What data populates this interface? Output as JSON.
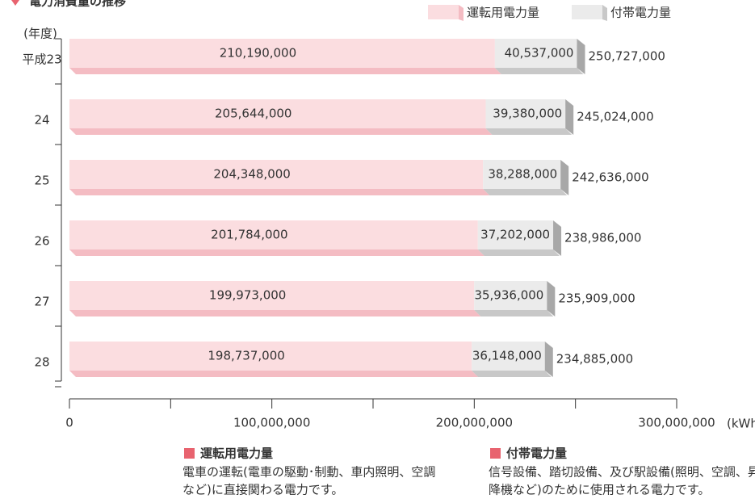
{
  "chart_data": {
    "type": "stacked_hbar",
    "title": "電力消費量の推移",
    "y_label": "(年度)",
    "x_unit": "(kWh)",
    "categories": [
      "平成23",
      "24",
      "25",
      "26",
      "27",
      "28"
    ],
    "series": [
      {
        "name": "運転用電力量",
        "color": "#fbdde0",
        "side_color": "#f4bcc3",
        "values": [
          210190000,
          205644000,
          204348000,
          201784000,
          199973000,
          198737000
        ],
        "value_labels": [
          "210,190,000",
          "205,644,000",
          "204,348,000",
          "201,784,000",
          "199,973,000",
          "198,737,000"
        ]
      },
      {
        "name": "付帯電力量",
        "color": "#ebebeb",
        "side_color": "#c8c8c8",
        "values": [
          40537000,
          39380000,
          38288000,
          37202000,
          35936000,
          36148000
        ],
        "value_labels": [
          "40,537,000",
          "39,380,000",
          "38,288,000",
          "37,202,000",
          "35,936,000",
          "36,148,000"
        ]
      }
    ],
    "total_labels": [
      "250,727,000",
      "245,024,000",
      "242,636,000",
      "238,986,000",
      "235,909,000",
      "234,885,000"
    ],
    "xlim": [
      0,
      300000000
    ],
    "xticks": [
      0,
      {
        "value": 100000000,
        "label": "100,000,000"
      },
      {
        "value": 200000000,
        "label": "200,000,000"
      },
      {
        "value": 300000000,
        "label": "300,000,000"
      }
    ],
    "legend_notes": [
      {
        "title": "運転用電力量",
        "color": "#e8636f",
        "lines": [
          "電車の運転(電車の駆動･制動、車内照明、空調",
          "など)に直接関わる電力です。"
        ]
      },
      {
        "title": "付帯電力量",
        "color": "#e8636f",
        "lines": [
          "信号設備、踏切設備、及び駅設備(照明、空調、昇",
          "降機など)のために使用される電力です。"
        ]
      }
    ]
  }
}
